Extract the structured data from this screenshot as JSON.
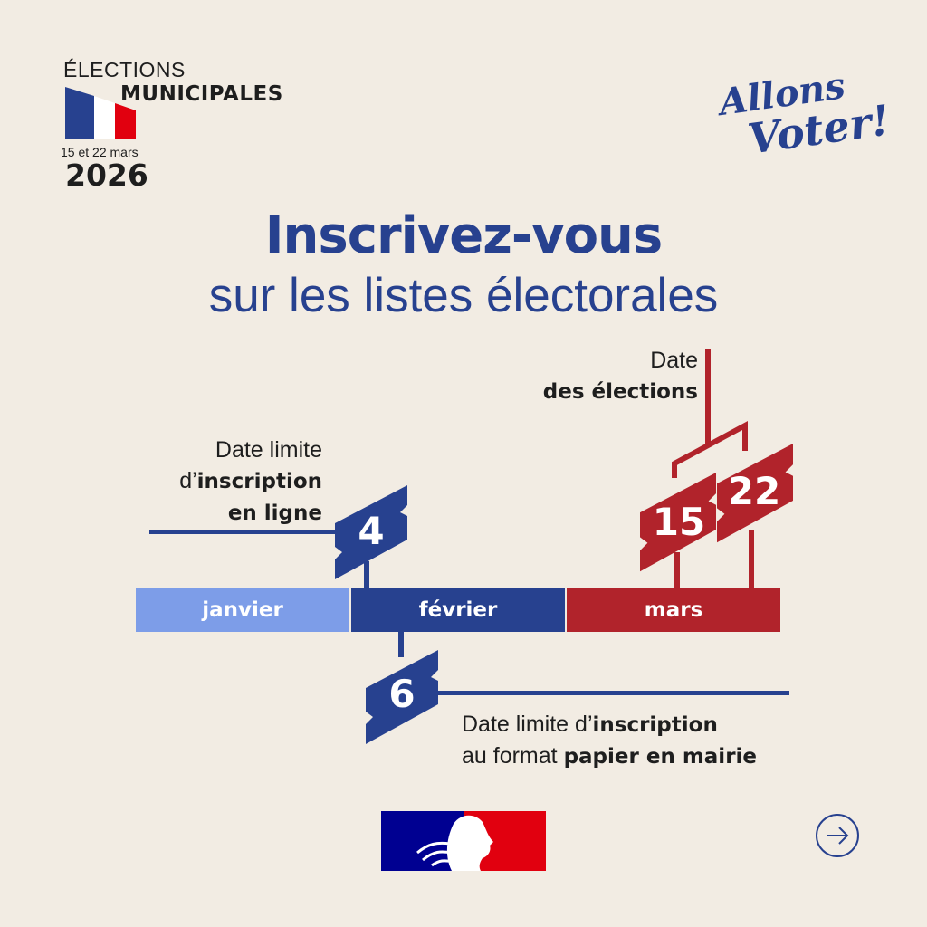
{
  "header": {
    "line1": "ÉLECTIONS",
    "line2": "MUNICIPALES",
    "dates": "15 et 22 mars",
    "year": "2026",
    "slogan_line1": "Allons",
    "slogan_line2": "Voter!"
  },
  "title": {
    "main": "Inscrivez-vous",
    "sub": "sur les listes électorales"
  },
  "timeline": {
    "months": [
      {
        "label": "janvier",
        "color": "#7d9de8"
      },
      {
        "label": "février",
        "color": "#27418f"
      },
      {
        "label": "mars",
        "color": "#b1232b"
      }
    ],
    "online_deadline": {
      "day": "4",
      "l1": "Date limite",
      "l2a": "d’",
      "l2b": "inscription",
      "l3": "en ligne"
    },
    "paper_deadline": {
      "day": "6",
      "l1a": "Date limite d’",
      "l1b": "inscription",
      "l2a": "au format ",
      "l2b": "papier en mairie"
    },
    "election": {
      "days": [
        "15",
        "22"
      ],
      "l1": "Date",
      "l2": "des élections"
    }
  },
  "colors": {
    "blue": "#27418f",
    "red": "#b1232b",
    "light_blue": "#7d9de8",
    "background": "#f2ece3"
  },
  "footer": {
    "logo": "Marianne - République Française",
    "next_icon": "arrow-right-circle"
  }
}
